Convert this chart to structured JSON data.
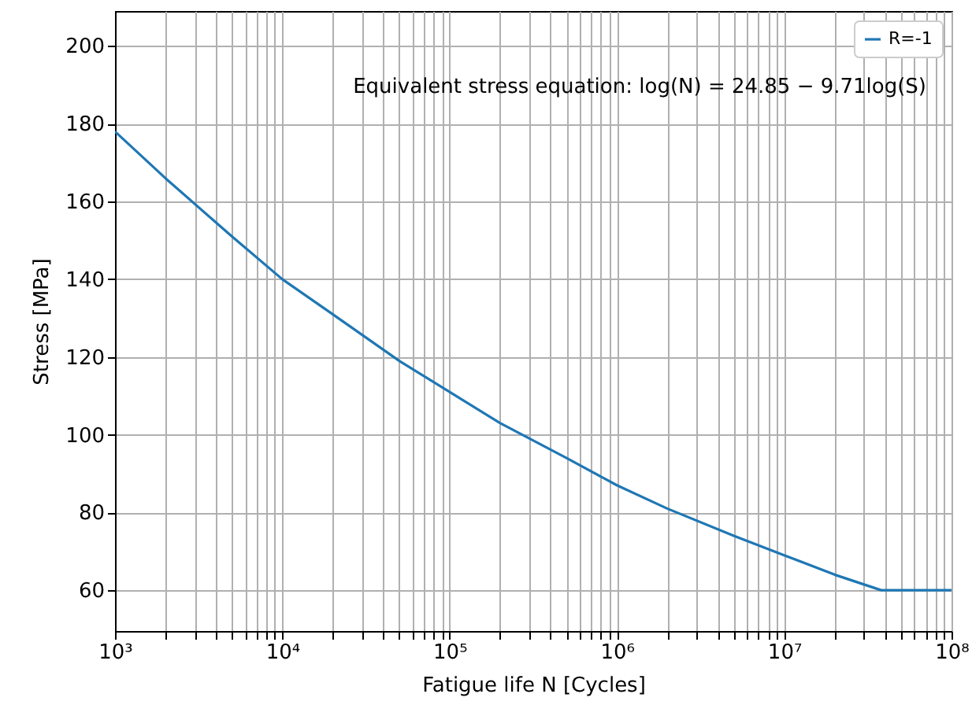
{
  "chart_data": {
    "type": "line",
    "xlabel": "Fatigue life N [Cycles]",
    "ylabel": "Stress [MPa]",
    "annotations": [
      "Equivalent stress equation: log(N) = 24.85 − 9.71log(S)"
    ],
    "x": [
      1000,
      2000,
      5000,
      10000,
      20000,
      50000,
      100000,
      200000,
      500000,
      1000000,
      2000000,
      5000000,
      10000000,
      20000000,
      38000000,
      100000000
    ],
    "series": [
      {
        "name": "R=-1",
        "color": "#1f77b4",
        "values": [
          178,
          166,
          151,
          140,
          131,
          119,
          111,
          103,
          94,
          87,
          81,
          74,
          69,
          64,
          60,
          60
        ]
      }
    ],
    "xlim": [
      1000,
      100000000
    ],
    "ylim": [
      49.5,
      209
    ],
    "xticks": [
      {
        "value": 1000,
        "label": "10³"
      },
      {
        "value": 2000,
        "label": null
      },
      {
        "value": 3000,
        "label": null
      },
      {
        "value": 4000,
        "label": null
      },
      {
        "value": 5000,
        "label": null
      },
      {
        "value": 6000,
        "label": null
      },
      {
        "value": 7000,
        "label": null
      },
      {
        "value": 8000,
        "label": null
      },
      {
        "value": 9000,
        "label": null
      },
      {
        "value": 10000,
        "label": "10⁴"
      },
      {
        "value": 20000,
        "label": null
      },
      {
        "value": 30000,
        "label": null
      },
      {
        "value": 40000,
        "label": null
      },
      {
        "value": 50000,
        "label": null
      },
      {
        "value": 60000,
        "label": null
      },
      {
        "value": 70000,
        "label": null
      },
      {
        "value": 80000,
        "label": null
      },
      {
        "value": 90000,
        "label": null
      },
      {
        "value": 100000,
        "label": "10⁵"
      },
      {
        "value": 200000,
        "label": null
      },
      {
        "value": 300000,
        "label": null
      },
      {
        "value": 400000,
        "label": null
      },
      {
        "value": 500000,
        "label": null
      },
      {
        "value": 600000,
        "label": null
      },
      {
        "value": 700000,
        "label": null
      },
      {
        "value": 800000,
        "label": null
      },
      {
        "value": 900000,
        "label": null
      },
      {
        "value": 1000000,
        "label": "10⁶"
      },
      {
        "value": 2000000,
        "label": null
      },
      {
        "value": 3000000,
        "label": null
      },
      {
        "value": 4000000,
        "label": null
      },
      {
        "value": 5000000,
        "label": null
      },
      {
        "value": 6000000,
        "label": null
      },
      {
        "value": 7000000,
        "label": null
      },
      {
        "value": 8000000,
        "label": null
      },
      {
        "value": 9000000,
        "label": null
      },
      {
        "value": 10000000,
        "label": "10⁷"
      },
      {
        "value": 20000000,
        "label": null
      },
      {
        "value": 30000000,
        "label": null
      },
      {
        "value": 40000000,
        "label": null
      },
      {
        "value": 50000000,
        "label": null
      },
      {
        "value": 60000000,
        "label": null
      },
      {
        "value": 70000000,
        "label": null
      },
      {
        "value": 80000000,
        "label": null
      },
      {
        "value": 90000000,
        "label": null
      },
      {
        "value": 100000000,
        "label": "10⁸"
      }
    ],
    "yticks": [
      60,
      80,
      100,
      120,
      140,
      160,
      180,
      200
    ],
    "log": "x",
    "grid": true,
    "legend": "top right"
  }
}
